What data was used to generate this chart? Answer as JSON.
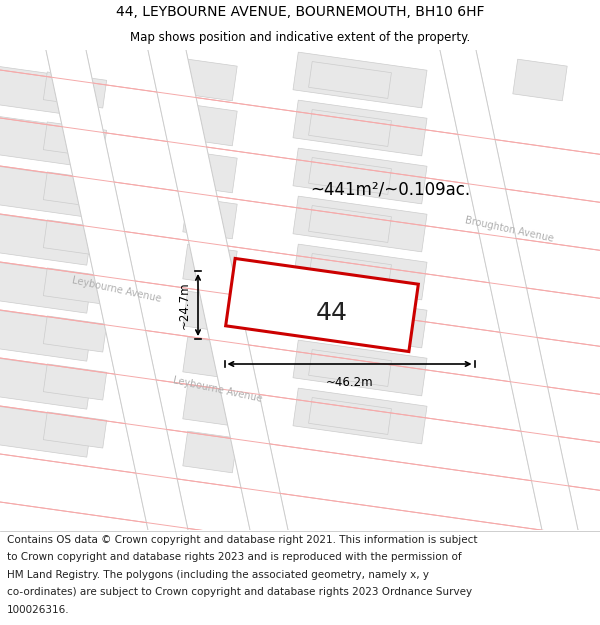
{
  "title": "44, LEYBOURNE AVENUE, BOURNEMOUTH, BH10 6HF",
  "subtitle": "Map shows position and indicative extent of the property.",
  "title_fontsize": 10,
  "subtitle_fontsize": 8.5,
  "footer_lines": [
    "Contains OS data © Crown copyright and database right 2021. This information is subject",
    "to Crown copyright and database rights 2023 and is reproduced with the permission of",
    "HM Land Registry. The polygons (including the associated geometry, namely x, y",
    "co-ordinates) are subject to Crown copyright and database rights 2023 Ordnance Survey",
    "100026316."
  ],
  "footer_fontsize": 7.5,
  "map_bg": "#ffffff",
  "road_line_color": "#f5aaaa",
  "road_line_lw": 0.7,
  "building_fc": "#e8e8e8",
  "building_ec": "#cccccc",
  "road_corridor_fc": "#ffffff",
  "property_fc": "#ffffff",
  "property_ec": "#cc0000",
  "property_lw": 2.2,
  "dim_color": "#000000",
  "area_text": "~441m²/~0.109ac.",
  "area_fontsize": 12,
  "width_label": "~46.2m",
  "height_label": "~24.7m",
  "number_label": "44",
  "number_fontsize": 18,
  "street_label_left": "Leybourne Avenue",
  "street_label_right": "Leybourne Avenue",
  "street_label_br": "Broughton Avenue",
  "street_fontsize": 7,
  "street_color": "#b0b0b0"
}
